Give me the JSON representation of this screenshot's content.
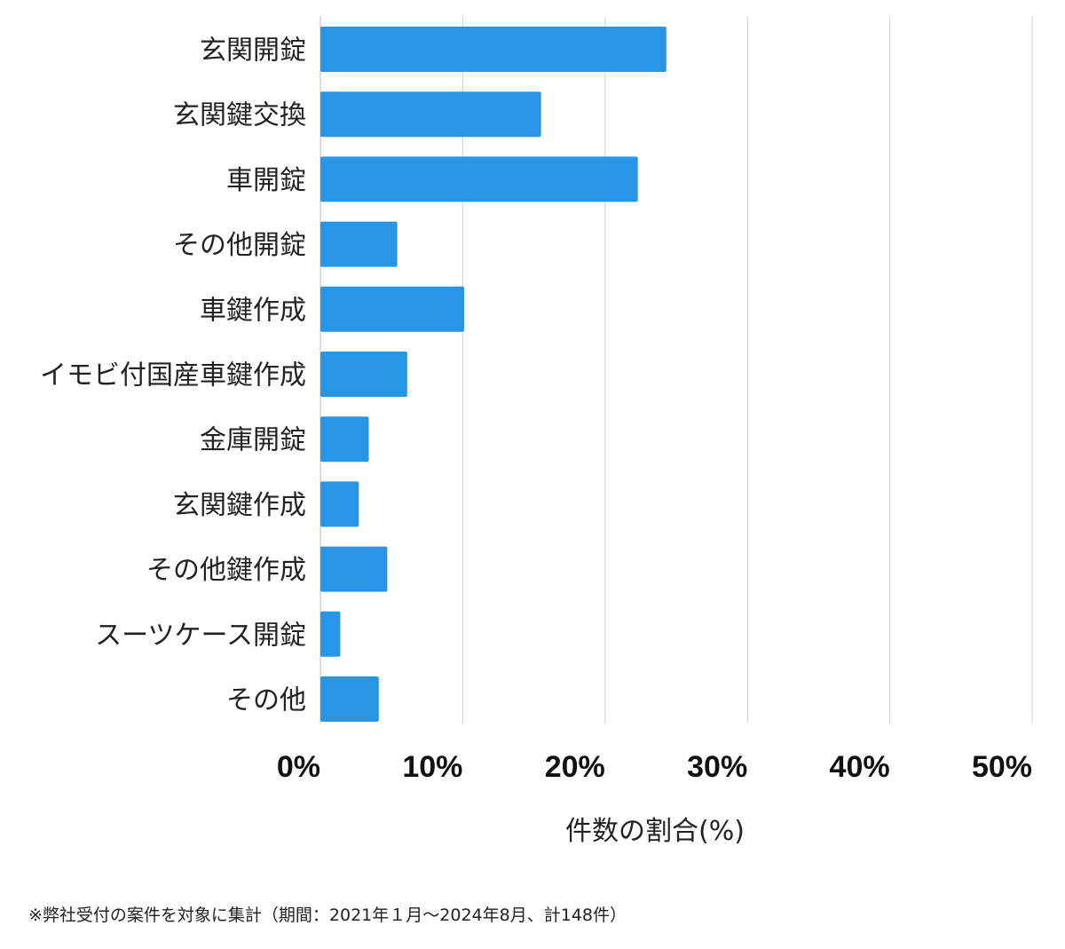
{
  "chart_data": {
    "type": "bar",
    "orientation": "horizontal",
    "categories": [
      "玄関開錠",
      "玄関鍵交換",
      "車開錠",
      "その他開錠",
      "車鍵作成",
      "イモビ付国産車鍵作成",
      "金庫開錠",
      "玄関鍵作成",
      "その他鍵作成",
      "スーツケース開錠",
      "その他"
    ],
    "series": [
      {
        "values": [
          24.3,
          15.5,
          22.3,
          5.4,
          10.1,
          6.1,
          3.4,
          2.7,
          4.7,
          1.4,
          4.1
        ]
      }
    ],
    "xlabel": "件数の割合(%)",
    "ylabel": "",
    "xlim": [
      0,
      50
    ],
    "xticks": [
      0,
      10,
      20,
      30,
      40,
      50
    ],
    "xtick_labels": [
      "0%",
      "10%",
      "20%",
      "30%",
      "40%",
      "50%"
    ],
    "grid": "vertical",
    "legend": "none",
    "bar_color": "#2896e6",
    "grid_color": "#d4d4d4"
  },
  "footnote": "※弊社受付の案件を対象に集計（期間：2021年１月〜2024年8月、計148件）"
}
